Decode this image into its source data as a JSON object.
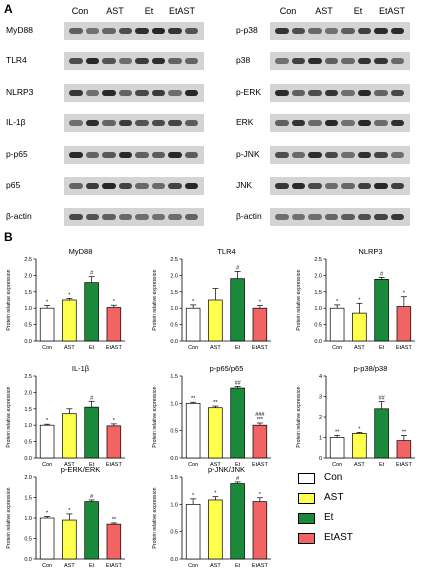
{
  "panel_a_label": "A",
  "panel_b_label": "B",
  "blot_left": {
    "lanes": [
      "Con",
      "AST",
      "Et",
      "EtAST"
    ],
    "rows": [
      "MyD88",
      "TLR4",
      "NLRP3",
      "IL-1β",
      "p-p65",
      "p65",
      "β-actin"
    ]
  },
  "blot_right": {
    "lanes": [
      "Con",
      "AST",
      "Et",
      "EtAST"
    ],
    "rows": [
      "p-p38",
      "p38",
      "p-ERK",
      "ERK",
      "p-JNK",
      "JNK",
      "β-actin"
    ]
  },
  "colors": {
    "Con": "#ffffff",
    "AST": "#ffff4d",
    "Et": "#1a8a3a",
    "EtAST": "#f26363"
  },
  "legend": [
    "Con",
    "AST",
    "Et",
    "EtAST"
  ],
  "chart_data": [
    {
      "type": "bar",
      "title": "MyD88",
      "ylabel": "Protein relative expression",
      "categories": [
        "Con",
        "AST",
        "Et",
        "EtAST"
      ],
      "values": [
        1.0,
        1.25,
        1.78,
        1.02
      ],
      "errors": [
        0.08,
        0.05,
        0.18,
        0.07
      ],
      "ylim": [
        0,
        2.5
      ],
      "yticks": [
        "0.0",
        "0.5",
        "1.0",
        "1.5",
        "2.0",
        "2.5"
      ],
      "annotations": [
        "*",
        "*",
        "#",
        "*"
      ]
    },
    {
      "type": "bar",
      "title": "TLR4",
      "ylabel": "Protein relative expression",
      "categories": [
        "Con",
        "AST",
        "Et",
        "EtAST"
      ],
      "values": [
        1.0,
        1.25,
        1.9,
        1.0
      ],
      "errors": [
        0.1,
        0.35,
        0.22,
        0.08
      ],
      "ylim": [
        0,
        2.5
      ],
      "yticks": [
        "0.0",
        "0.5",
        "1.0",
        "1.5",
        "2.0",
        "2.5"
      ],
      "annotations": [
        "*",
        "",
        "#",
        "*"
      ]
    },
    {
      "type": "bar",
      "title": "NLRP3",
      "ylabel": "Protein relative expression",
      "categories": [
        "Con",
        "AST",
        "Et",
        "EtAST"
      ],
      "values": [
        1.0,
        0.85,
        1.88,
        1.05
      ],
      "errors": [
        0.1,
        0.3,
        0.06,
        0.3
      ],
      "ylim": [
        0,
        2.5
      ],
      "yticks": [
        "0.0",
        "0.5",
        "1.0",
        "1.5",
        "2.0",
        "2.5"
      ],
      "annotations": [
        "*",
        "*",
        "#",
        "*"
      ]
    },
    {
      "type": "bar",
      "title": "IL-1β",
      "ylabel": "Protein relative expression",
      "categories": [
        "Con",
        "AST",
        "Et",
        "EtAST"
      ],
      "values": [
        1.0,
        1.35,
        1.55,
        0.98
      ],
      "errors": [
        0.03,
        0.15,
        0.18,
        0.06
      ],
      "ylim": [
        0,
        2.5
      ],
      "yticks": [
        "0.0",
        "0.5",
        "1.0",
        "1.5",
        "2.0",
        "2.5"
      ],
      "annotations": [
        "*",
        "",
        "#",
        "*"
      ]
    },
    {
      "type": "bar",
      "title": "p-p65/p65",
      "ylabel": "Protein relative expression",
      "categories": [
        "Con",
        "AST",
        "Et",
        "EtAST"
      ],
      "values": [
        1.0,
        0.92,
        1.28,
        0.6
      ],
      "errors": [
        0.02,
        0.03,
        0.03,
        0.04
      ],
      "ylim": [
        0,
        1.5
      ],
      "yticks": [
        "0.0",
        "0.5",
        "1.0",
        "1.5"
      ],
      "annotations": [
        "**",
        "**",
        "##",
        "###\n***"
      ]
    },
    {
      "type": "bar",
      "title": "p-p38/p38",
      "ylabel": "Protein relative expression",
      "categories": [
        "Con",
        "AST",
        "Et",
        "EtAST"
      ],
      "values": [
        1.0,
        1.2,
        2.4,
        0.85
      ],
      "errors": [
        0.1,
        0.05,
        0.35,
        0.25
      ],
      "ylim": [
        0,
        4
      ],
      "yticks": [
        "0",
        "1",
        "2",
        "3",
        "4"
      ],
      "annotations": [
        "**",
        "*",
        "##",
        "**"
      ]
    },
    {
      "type": "bar",
      "title": "p-ERK/ERK",
      "ylabel": "Protein relative expression",
      "categories": [
        "Con",
        "AST",
        "Et",
        "EtAST"
      ],
      "values": [
        1.0,
        0.95,
        1.4,
        0.85
      ],
      "errors": [
        0.04,
        0.15,
        0.04,
        0.03
      ],
      "ylim": [
        0,
        2.0
      ],
      "yticks": [
        "0.0",
        "0.5",
        "1.0",
        "1.5",
        "2.0"
      ],
      "annotations": [
        "*",
        "*",
        "#",
        "**"
      ]
    },
    {
      "type": "bar",
      "title": "p-JNK/JNK",
      "ylabel": "Protein relative expression",
      "categories": [
        "Con",
        "AST",
        "Et",
        "EtAST"
      ],
      "values": [
        1.0,
        1.08,
        1.38,
        1.05
      ],
      "errors": [
        0.1,
        0.06,
        0.03,
        0.07
      ],
      "ylim": [
        0,
        1.5
      ],
      "yticks": [
        "0.0",
        "0.5",
        "1.0",
        "1.5"
      ],
      "annotations": [
        "*",
        "*",
        "#",
        "*"
      ]
    }
  ]
}
